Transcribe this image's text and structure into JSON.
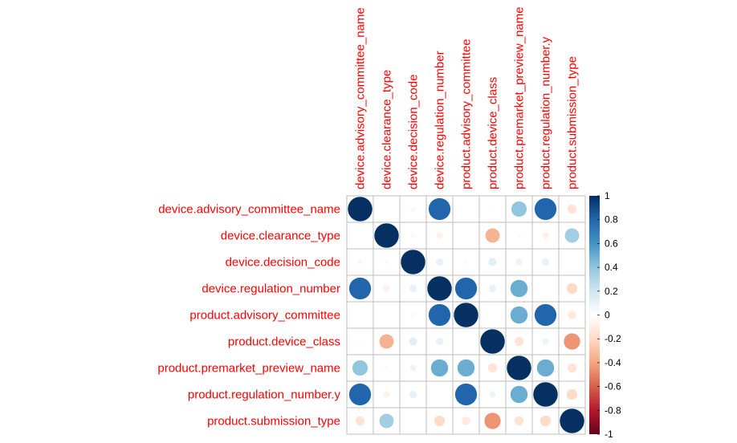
{
  "chart_data": {
    "type": "heatmap",
    "method": "circle",
    "label_color": "#ff0000",
    "variables": [
      "device.advisory_committee_name",
      "device.clearance_type",
      "device.decision_code",
      "device.regulation_number",
      "product.advisory_committee",
      "product.device_class",
      "product.premarket_preview_name",
      "product.regulation_number.y",
      "product.submission_type"
    ],
    "matrix": [
      [
        1.0,
        0.0,
        0.05,
        0.8,
        0.0,
        0.02,
        0.4,
        0.8,
        -0.15
      ],
      [
        0.0,
        1.0,
        0.03,
        -0.08,
        0.0,
        -0.35,
        0.03,
        -0.08,
        0.35
      ],
      [
        0.05,
        0.03,
        1.0,
        0.1,
        0.03,
        0.12,
        0.08,
        0.1,
        0.0
      ],
      [
        0.8,
        -0.08,
        0.1,
        1.0,
        0.8,
        0.1,
        0.5,
        0.0,
        -0.2
      ],
      [
        0.0,
        0.0,
        0.03,
        0.8,
        1.0,
        0.0,
        0.5,
        0.8,
        -0.12
      ],
      [
        0.02,
        -0.35,
        0.12,
        0.1,
        0.0,
        1.0,
        -0.15,
        0.08,
        -0.45
      ],
      [
        0.4,
        0.03,
        0.08,
        0.5,
        0.5,
        -0.15,
        1.0,
        0.5,
        -0.15
      ],
      [
        0.8,
        -0.08,
        0.1,
        0.0,
        0.8,
        0.08,
        0.5,
        1.0,
        -0.2
      ],
      [
        -0.15,
        0.35,
        0.0,
        -0.2,
        -0.12,
        -0.45,
        -0.15,
        -0.2,
        1.0
      ]
    ],
    "colorbar_ticks": [
      "1",
      "0.8",
      "0.6",
      "0.4",
      "0.2",
      "0",
      "-0.2",
      "-0.4",
      "-0.6",
      "-0.8",
      "-1"
    ],
    "value_range": [
      -1,
      1
    ],
    "palette_stops": [
      "#67001F",
      "#B2182B",
      "#D6604D",
      "#F4A582",
      "#FDDBC7",
      "#FFFFFF",
      "#D1E5F0",
      "#92C5DE",
      "#4393C3",
      "#2166AC",
      "#053061"
    ],
    "grid_color": "#bebebe"
  }
}
